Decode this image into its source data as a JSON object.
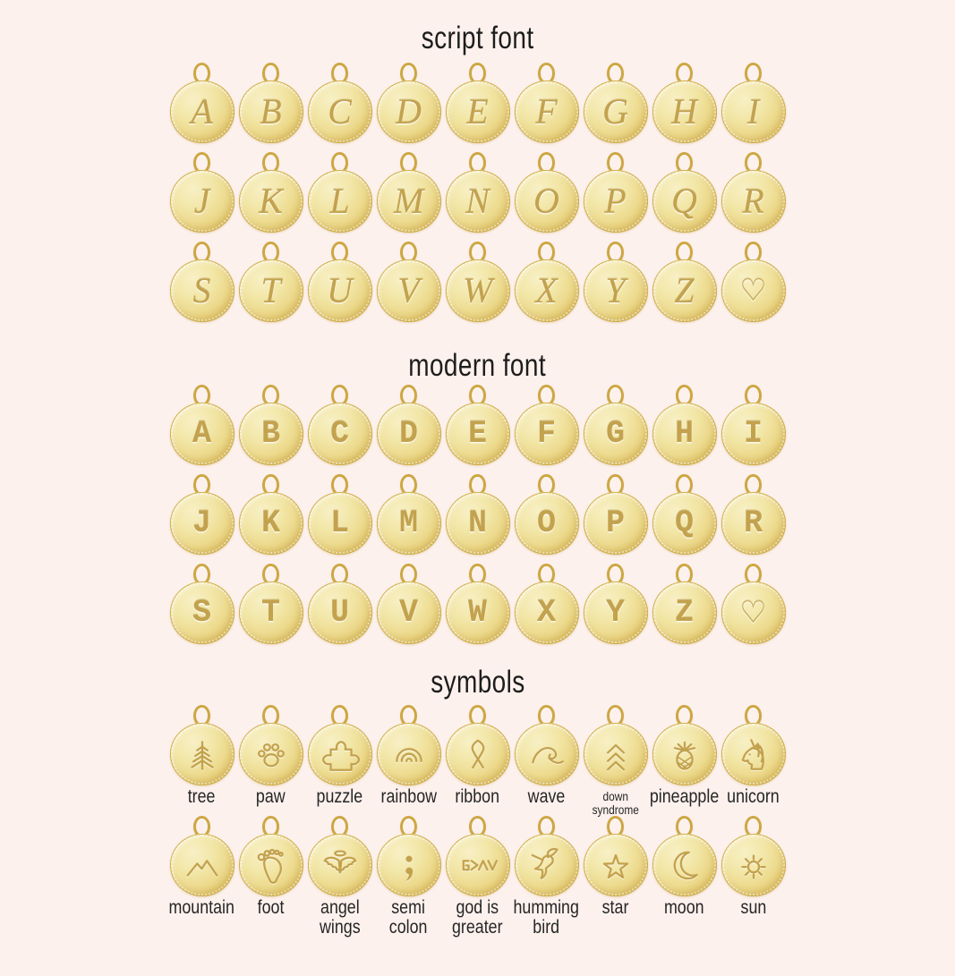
{
  "page": {
    "background_color": "#fcf1ed",
    "gold_color": "#e3c76c",
    "engrave_color": "#c3a24e",
    "text_color": "#262626"
  },
  "sections": {
    "script": {
      "title": "script font",
      "rows": [
        [
          "A",
          "B",
          "C",
          "D",
          "E",
          "F",
          "G",
          "H",
          "I"
        ],
        [
          "J",
          "K",
          "L",
          "M",
          "N",
          "O",
          "P",
          "Q",
          "R"
        ],
        [
          "S",
          "T",
          "U",
          "V",
          "W",
          "X",
          "Y",
          "Z",
          "♡"
        ]
      ]
    },
    "modern": {
      "title": "modern font",
      "rows": [
        [
          "A",
          "B",
          "C",
          "D",
          "E",
          "F",
          "G",
          "H",
          "I"
        ],
        [
          "J",
          "K",
          "L",
          "M",
          "N",
          "O",
          "P",
          "Q",
          "R"
        ],
        [
          "S",
          "T",
          "U",
          "V",
          "W",
          "X",
          "Y",
          "Z",
          "♡"
        ]
      ]
    },
    "symbols": {
      "title": "symbols",
      "rows": [
        [
          {
            "icon": "tree",
            "label": "tree"
          },
          {
            "icon": "paw",
            "label": "paw"
          },
          {
            "icon": "puzzle",
            "label": "puzzle"
          },
          {
            "icon": "rainbow",
            "label": "rainbow"
          },
          {
            "icon": "ribbon",
            "label": "ribbon"
          },
          {
            "icon": "wave",
            "label": "wave"
          },
          {
            "icon": "down-syndrome",
            "label": "down syndrome",
            "label_lines": [
              "down",
              "syndrome"
            ],
            "small": true
          },
          {
            "icon": "pineapple",
            "label": "pineapple"
          },
          {
            "icon": "unicorn",
            "label": "unicorn"
          }
        ],
        [
          {
            "icon": "mountain",
            "label": "mountain"
          },
          {
            "icon": "foot",
            "label": "foot"
          },
          {
            "icon": "angel-wings",
            "label": "angel wings",
            "label_lines": [
              "angel",
              "wings"
            ]
          },
          {
            "icon": "semi-colon",
            "label": "semi colon",
            "label_lines": [
              "semi",
              "colon"
            ]
          },
          {
            "icon": "god-is-greater",
            "label": "god is greater",
            "label_lines": [
              "god is",
              "greater"
            ]
          },
          {
            "icon": "humming-bird",
            "label": "humming bird",
            "label_lines": [
              "humming",
              "bird"
            ]
          },
          {
            "icon": "star",
            "label": "star"
          },
          {
            "icon": "moon",
            "label": "moon"
          },
          {
            "icon": "sun",
            "label": "sun"
          }
        ]
      ]
    }
  }
}
